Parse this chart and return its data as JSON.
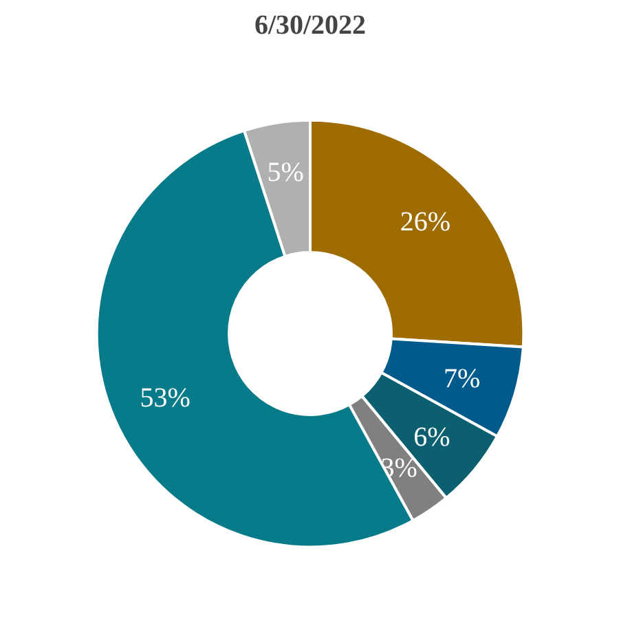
{
  "chart_data": {
    "type": "donut",
    "title": "6/30/2022",
    "categories": [
      null,
      null,
      null,
      null,
      null,
      null
    ],
    "values": [
      26,
      7,
      6,
      3,
      53,
      5
    ],
    "colors": [
      "#9e6c00",
      "#005b8c",
      "#0b5f6e",
      "#808080",
      "#087b8b",
      "#b0b0b0"
    ],
    "value_labels": [
      "26%",
      "7%",
      "6%",
      "3%",
      "53%",
      "5%"
    ]
  }
}
